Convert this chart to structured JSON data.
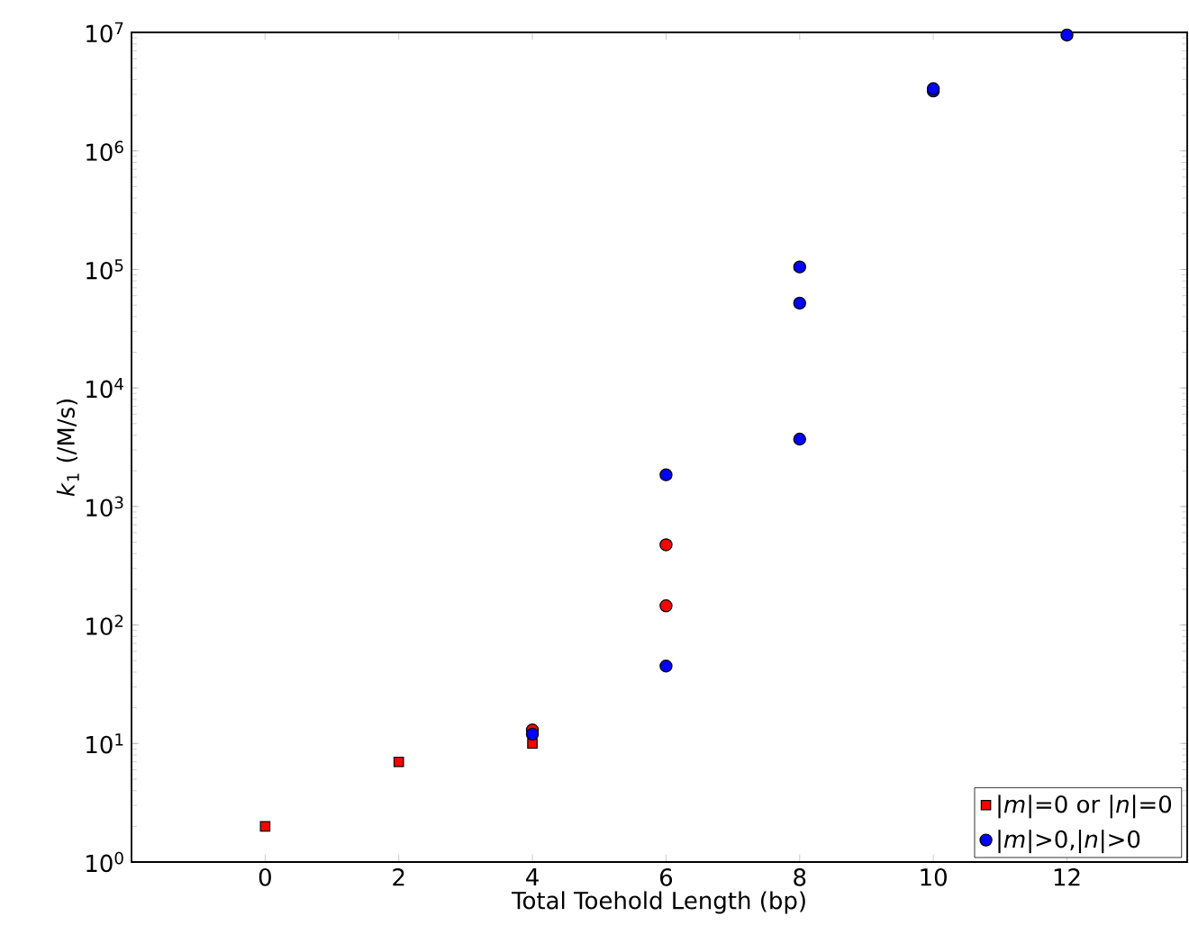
{
  "chart_data": {
    "type": "scatter",
    "xlabel": "Total Toehold Length (bp)",
    "ylabel": "*k*$_{1}$ (/M/s)",
    "log": "y",
    "grid": false,
    "legend": "bottom right",
    "xlim": [
      -2,
      13.8
    ],
    "ylim": [
      1,
      10000000
    ],
    "xticks": [
      0,
      2,
      4,
      6,
      8,
      10,
      12
    ],
    "yticks": [
      {
        "value": 1,
        "label": "10$^{0}$"
      },
      {
        "value": 10,
        "label": "10$^{1}$"
      },
      {
        "value": 100,
        "label": "10$^{2}$"
      },
      {
        "value": 1000,
        "label": "10$^{3}$"
      },
      {
        "value": 10000,
        "label": "10$^{4}$"
      },
      {
        "value": 100000,
        "label": "10$^{5}$"
      },
      {
        "value": 1000000,
        "label": "10$^{6}$"
      },
      {
        "value": 10000000,
        "label": "10$^{7}$"
      }
    ],
    "series": [
      {
        "name": "|*m*|=0 or |*n*|=0",
        "color": "#ff0000",
        "marker": "square",
        "x": [
          0,
          2,
          4
        ],
        "values": [
          2,
          7,
          10
        ]
      },
      {
        "color": "#ff0000",
        "marker": "circle",
        "x": [
          4,
          6,
          6
        ],
        "values": [
          13,
          475,
          145
        ]
      },
      {
        "name": "|*m*|>0,|*n*|>0",
        "color": "#0000ff",
        "marker": "circle",
        "x": [
          4,
          6,
          6,
          8,
          8,
          8,
          10,
          10,
          12
        ],
        "values": [
          12,
          45,
          1850,
          3700,
          52000,
          105000,
          3200000,
          3350000,
          9500000
        ]
      }
    ]
  }
}
